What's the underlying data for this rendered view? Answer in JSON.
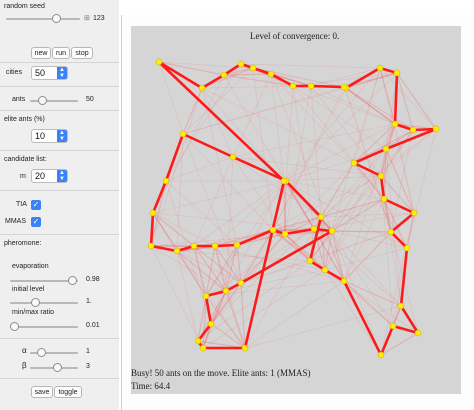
{
  "controls": {
    "random_seed": {
      "label": "random seed",
      "value": "123",
      "level": 0.62
    },
    "seed_buttons": [
      "new",
      "run",
      "stop"
    ],
    "cities": {
      "label": "cities",
      "value": "50"
    },
    "ants": {
      "label": "ants",
      "value": "50",
      "level": 0.4
    },
    "elite_ants": {
      "label": "elite ants (%)",
      "value": "10"
    },
    "candidate_list": {
      "label": "candidate list:",
      "m_label": "m",
      "m_value": "20"
    },
    "tia": {
      "label": "TIA",
      "checked": true
    },
    "mmas": {
      "label": "MMAS",
      "checked": true
    },
    "pheromone": {
      "label": "pheromone:",
      "evaporation": {
        "label": "evaporation",
        "value": "0.98",
        "level": 0.88
      },
      "initial_level": {
        "label": "initial level",
        "value": "1.",
        "level": 0.32
      },
      "min_max_ratio": {
        "label": "min/max ratio",
        "value": "0.01",
        "level": 0.05
      }
    },
    "alpha": {
      "label": "α",
      "value": "1",
      "level": 0.2
    },
    "beta": {
      "label": "β",
      "value": "3",
      "level": 0.55
    },
    "bottom_buttons": [
      "save",
      "toggle"
    ]
  },
  "plot": {
    "convergence_text": "Level of convergence: 0.",
    "status_text": "Busy! 50 ants on the move. Elite ants: 1 (MMAS)",
    "time_text": "Time: 64.4",
    "colors": {
      "edge": "#ff1a1a",
      "city": "#ffee00",
      "background": "#d5d5d5"
    }
  }
}
